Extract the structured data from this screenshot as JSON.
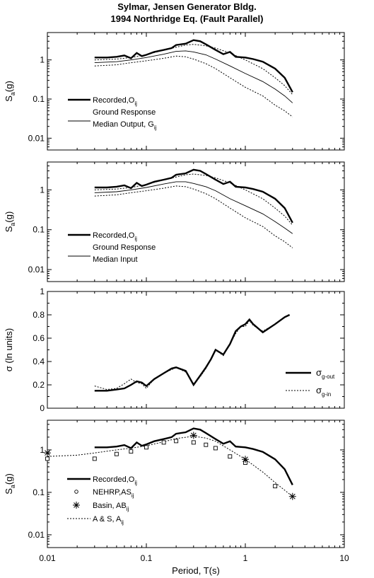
{
  "title_line1": "Sylmar, Jensen Generator Bldg.",
  "title_line2": "1994 Northridge Eq. (Fault Parallel)",
  "chart_data": [
    {
      "type": "line",
      "panel": 1,
      "ylabel": "S_a(g)",
      "xscale": "log",
      "yscale": "log",
      "xlim": [
        0.01,
        10
      ],
      "ylim": [
        0.005,
        5
      ],
      "yticks": [
        {
          "v": 1,
          "t": "1"
        },
        {
          "v": 0.1,
          "t": "0.1"
        },
        {
          "v": 0.01,
          "t": "0.01"
        }
      ],
      "legend": [
        {
          "style": "thick",
          "label": "Recorded,O",
          "sub": "ij"
        },
        {
          "style": "thin",
          "label": "Ground Response",
          "label2": "Median Output, G",
          "sub": "ij"
        }
      ],
      "series": [
        {
          "style": "thick",
          "x": [
            0.03,
            0.04,
            0.05,
            0.06,
            0.07,
            0.08,
            0.09,
            0.1,
            0.12,
            0.15,
            0.18,
            0.2,
            0.25,
            0.3,
            0.35,
            0.4,
            0.5,
            0.6,
            0.7,
            0.8,
            1.0,
            1.2,
            1.5,
            2.0,
            2.5,
            3.0
          ],
          "y": [
            1.15,
            1.15,
            1.2,
            1.3,
            1.1,
            1.5,
            1.25,
            1.35,
            1.6,
            1.8,
            2.0,
            2.4,
            2.6,
            3.2,
            3.0,
            2.5,
            1.8,
            1.4,
            1.6,
            1.2,
            1.15,
            1.05,
            0.9,
            0.6,
            0.35,
            0.15
          ]
        },
        {
          "style": "thin",
          "x": [
            0.03,
            0.05,
            0.07,
            0.1,
            0.15,
            0.2,
            0.25,
            0.3,
            0.4,
            0.5,
            0.7,
            1.0,
            1.5,
            2.0,
            2.5,
            3.0
          ],
          "y": [
            0.85,
            0.9,
            1.0,
            1.15,
            1.4,
            1.65,
            1.7,
            1.6,
            1.35,
            1.05,
            0.7,
            0.45,
            0.28,
            0.18,
            0.12,
            0.08
          ]
        },
        {
          "style": "dot",
          "x": [
            0.03,
            0.05,
            0.07,
            0.1,
            0.15,
            0.2,
            0.25,
            0.3,
            0.4,
            0.5,
            0.7,
            1.0,
            1.5,
            2.0,
            2.5,
            3.0
          ],
          "y": [
            1.0,
            1.05,
            1.15,
            1.35,
            1.8,
            2.1,
            2.4,
            2.5,
            2.3,
            2.0,
            1.5,
            1.0,
            0.6,
            0.35,
            0.22,
            0.13
          ]
        },
        {
          "style": "dot",
          "x": [
            0.03,
            0.05,
            0.07,
            0.1,
            0.15,
            0.2,
            0.25,
            0.3,
            0.4,
            0.5,
            0.7,
            1.0,
            1.5,
            2.0,
            2.5,
            3.0
          ],
          "y": [
            0.7,
            0.75,
            0.85,
            0.95,
            1.1,
            1.25,
            1.2,
            1.05,
            0.8,
            0.6,
            0.35,
            0.2,
            0.12,
            0.07,
            0.05,
            0.035
          ]
        }
      ]
    },
    {
      "type": "line",
      "panel": 2,
      "ylabel": "S_a(g)",
      "xscale": "log",
      "yscale": "log",
      "xlim": [
        0.01,
        10
      ],
      "ylim": [
        0.005,
        5
      ],
      "yticks": [
        {
          "v": 1,
          "t": "1"
        },
        {
          "v": 0.1,
          "t": "0.1"
        },
        {
          "v": 0.01,
          "t": "0.01"
        }
      ],
      "legend": [
        {
          "style": "thick",
          "label": "Recorded,O",
          "sub": "ij"
        },
        {
          "style": "thin",
          "label": "Ground Response",
          "label2": "Median Input",
          "sub": ""
        }
      ],
      "series": [
        {
          "style": "thick",
          "x": [
            0.03,
            0.04,
            0.05,
            0.06,
            0.07,
            0.08,
            0.09,
            0.1,
            0.12,
            0.15,
            0.18,
            0.2,
            0.25,
            0.3,
            0.35,
            0.4,
            0.5,
            0.6,
            0.7,
            0.8,
            1.0,
            1.2,
            1.5,
            2.0,
            2.5,
            3.0
          ],
          "y": [
            1.15,
            1.15,
            1.2,
            1.3,
            1.1,
            1.5,
            1.25,
            1.35,
            1.6,
            1.8,
            2.0,
            2.4,
            2.6,
            3.2,
            3.0,
            2.5,
            1.8,
            1.4,
            1.6,
            1.2,
            1.15,
            1.05,
            0.9,
            0.6,
            0.35,
            0.15
          ]
        },
        {
          "style": "thin",
          "x": [
            0.03,
            0.05,
            0.07,
            0.1,
            0.15,
            0.2,
            0.25,
            0.3,
            0.4,
            0.5,
            0.7,
            1.0,
            1.5,
            2.0,
            2.5,
            3.0
          ],
          "y": [
            0.85,
            0.9,
            1.0,
            1.15,
            1.4,
            1.6,
            1.6,
            1.45,
            1.2,
            0.95,
            0.6,
            0.4,
            0.25,
            0.16,
            0.11,
            0.08
          ]
        },
        {
          "style": "dot",
          "x": [
            0.03,
            0.05,
            0.07,
            0.1,
            0.15,
            0.2,
            0.25,
            0.3,
            0.4,
            0.5,
            0.7,
            1.0,
            1.5,
            2.0,
            2.5,
            3.0
          ],
          "y": [
            1.0,
            1.05,
            1.15,
            1.35,
            1.8,
            2.1,
            2.4,
            2.5,
            2.3,
            2.0,
            1.5,
            1.0,
            0.6,
            0.35,
            0.22,
            0.13
          ]
        },
        {
          "style": "dot",
          "x": [
            0.03,
            0.05,
            0.07,
            0.1,
            0.15,
            0.2,
            0.25,
            0.3,
            0.4,
            0.5,
            0.7,
            1.0,
            1.5,
            2.0,
            2.5,
            3.0
          ],
          "y": [
            0.7,
            0.75,
            0.85,
            0.95,
            1.1,
            1.25,
            1.2,
            1.05,
            0.8,
            0.6,
            0.35,
            0.2,
            0.12,
            0.07,
            0.05,
            0.035
          ]
        }
      ]
    },
    {
      "type": "line",
      "panel": 3,
      "ylabel": "σ (ln units)",
      "xscale": "log",
      "yscale": "linear",
      "xlim": [
        0.01,
        10
      ],
      "ylim": [
        0,
        1
      ],
      "yticks": [
        {
          "v": 0,
          "t": "0"
        },
        {
          "v": 0.2,
          "t": "0.2"
        },
        {
          "v": 0.4,
          "t": "0.4"
        },
        {
          "v": 0.6,
          "t": "0.6"
        },
        {
          "v": 0.8,
          "t": "0.8"
        },
        {
          "v": 1,
          "t": "1"
        }
      ],
      "legend": [
        {
          "style": "thick",
          "label": "σ",
          "sub": "g-out"
        },
        {
          "style": "dot",
          "label": "σ",
          "sub": "g-in"
        }
      ],
      "series": [
        {
          "style": "thick",
          "x": [
            0.03,
            0.04,
            0.05,
            0.06,
            0.07,
            0.08,
            0.09,
            0.1,
            0.12,
            0.15,
            0.18,
            0.2,
            0.25,
            0.3,
            0.35,
            0.4,
            0.45,
            0.5,
            0.6,
            0.7,
            0.8,
            0.9,
            1.0,
            1.1,
            1.2,
            1.5,
            2.0,
            2.5,
            2.8
          ],
          "y": [
            0.15,
            0.15,
            0.16,
            0.17,
            0.2,
            0.23,
            0.22,
            0.19,
            0.25,
            0.3,
            0.34,
            0.35,
            0.32,
            0.2,
            0.28,
            0.35,
            0.42,
            0.5,
            0.46,
            0.55,
            0.66,
            0.7,
            0.72,
            0.76,
            0.72,
            0.65,
            0.72,
            0.78,
            0.8
          ]
        },
        {
          "style": "dot",
          "x": [
            0.03,
            0.04,
            0.05,
            0.06,
            0.07,
            0.08,
            0.09,
            0.1,
            0.12,
            0.15,
            0.18,
            0.2,
            0.25,
            0.3,
            0.35,
            0.4,
            0.45,
            0.5,
            0.6,
            0.7,
            0.8,
            0.9,
            1.0,
            1.1,
            1.2,
            1.5,
            2.0,
            2.5,
            2.8
          ],
          "y": [
            0.19,
            0.16,
            0.17,
            0.21,
            0.25,
            0.22,
            0.21,
            0.17,
            0.25,
            0.3,
            0.33,
            0.35,
            0.31,
            0.21,
            0.27,
            0.34,
            0.42,
            0.5,
            0.45,
            0.55,
            0.64,
            0.7,
            0.7,
            0.75,
            0.71,
            0.66,
            0.72,
            0.78,
            0.8
          ]
        }
      ]
    },
    {
      "type": "line",
      "panel": 4,
      "ylabel": "S_a(g)",
      "xlabel": "Period, T(s)",
      "xscale": "log",
      "yscale": "log",
      "xlim": [
        0.01,
        10
      ],
      "ylim": [
        0.005,
        5
      ],
      "xticks": [
        {
          "v": 0.01,
          "t": "0.01"
        },
        {
          "v": 0.1,
          "t": "0.1"
        },
        {
          "v": 1,
          "t": "1"
        },
        {
          "v": 10,
          "t": "10"
        }
      ],
      "yticks": [
        {
          "v": 1,
          "t": "1"
        },
        {
          "v": 0.1,
          "t": "0.1"
        },
        {
          "v": 0.01,
          "t": "0.01"
        }
      ],
      "legend": [
        {
          "style": "thick",
          "label": "Recorded,O",
          "sub": "ij"
        },
        {
          "style": "circle",
          "label": "NEHRP,AS",
          "sub": "ij"
        },
        {
          "style": "star",
          "label": "Basin, AB",
          "sub": "ij"
        },
        {
          "style": "dot",
          "label": "A & S, A",
          "sub": "ij"
        }
      ],
      "series": [
        {
          "style": "thick",
          "x": [
            0.03,
            0.04,
            0.05,
            0.06,
            0.07,
            0.08,
            0.09,
            0.1,
            0.12,
            0.15,
            0.18,
            0.2,
            0.25,
            0.3,
            0.35,
            0.4,
            0.5,
            0.6,
            0.7,
            0.8,
            1.0,
            1.2,
            1.5,
            2.0,
            2.5,
            3.0
          ],
          "y": [
            1.15,
            1.15,
            1.2,
            1.3,
            1.1,
            1.5,
            1.25,
            1.35,
            1.6,
            1.8,
            2.0,
            2.4,
            2.6,
            3.2,
            3.0,
            2.5,
            1.8,
            1.4,
            1.6,
            1.2,
            1.15,
            1.05,
            0.9,
            0.6,
            0.35,
            0.15
          ]
        },
        {
          "style": "dot",
          "x": [
            0.01,
            0.02,
            0.03,
            0.05,
            0.07,
            0.1,
            0.15,
            0.2,
            0.3,
            0.4,
            0.5,
            0.7,
            1.0,
            1.5,
            2.0,
            3.0
          ],
          "y": [
            0.7,
            0.75,
            0.85,
            1.0,
            1.1,
            1.25,
            1.55,
            1.85,
            2.1,
            1.9,
            1.6,
            1.0,
            0.6,
            0.3,
            0.17,
            0.08
          ]
        },
        {
          "style": "square",
          "x": [
            0.01,
            0.03,
            0.05,
            0.07,
            0.1,
            0.15,
            0.2,
            0.3,
            0.4,
            0.5,
            0.7,
            1.0,
            2.0
          ],
          "y": [
            0.62,
            0.62,
            0.8,
            0.92,
            1.15,
            1.5,
            1.62,
            1.5,
            1.32,
            1.1,
            0.7,
            0.5,
            0.14
          ]
        },
        {
          "style": "star",
          "x": [
            0.01,
            0.3,
            1.0,
            3.0
          ],
          "y": [
            0.85,
            2.2,
            0.6,
            0.08
          ]
        }
      ]
    }
  ]
}
